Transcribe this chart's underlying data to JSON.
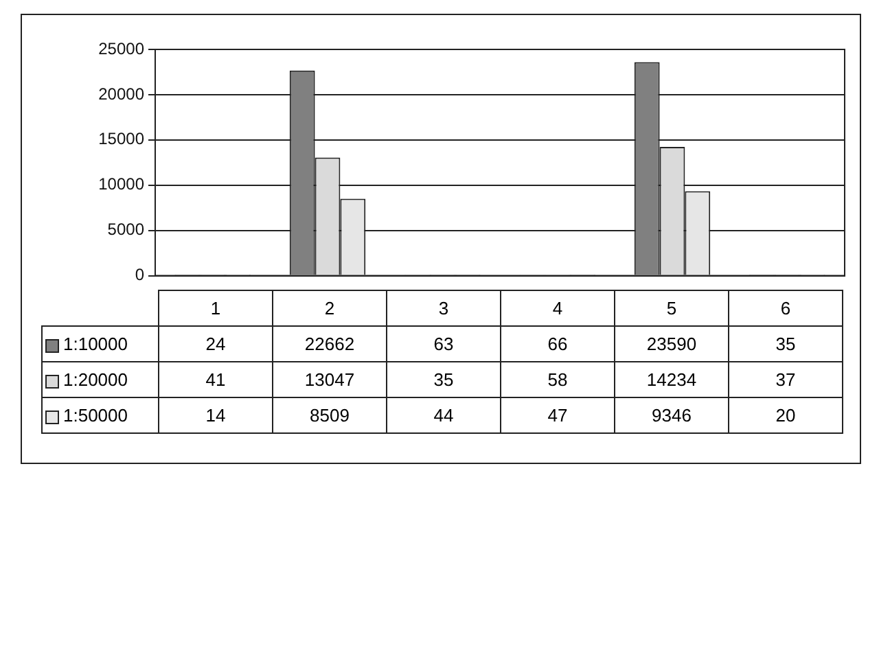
{
  "chart_data": {
    "type": "bar",
    "categories": [
      "1",
      "2",
      "3",
      "4",
      "5",
      "6"
    ],
    "series": [
      {
        "name": "1:10000",
        "color": "#808080",
        "values": [
          24,
          22662,
          63,
          66,
          23590,
          35
        ]
      },
      {
        "name": "1:20000",
        "color": "#dadada",
        "values": [
          41,
          13047,
          35,
          58,
          14234,
          37
        ]
      },
      {
        "name": "1:50000",
        "color": "#e6e6e6",
        "values": [
          14,
          8509,
          44,
          47,
          9346,
          20
        ]
      }
    ],
    "ylim": [
      0,
      25000
    ],
    "yticks": [
      0,
      5000,
      10000,
      15000,
      20000,
      25000
    ],
    "grid": "y",
    "legend": "bottom left",
    "data_labels": true
  }
}
